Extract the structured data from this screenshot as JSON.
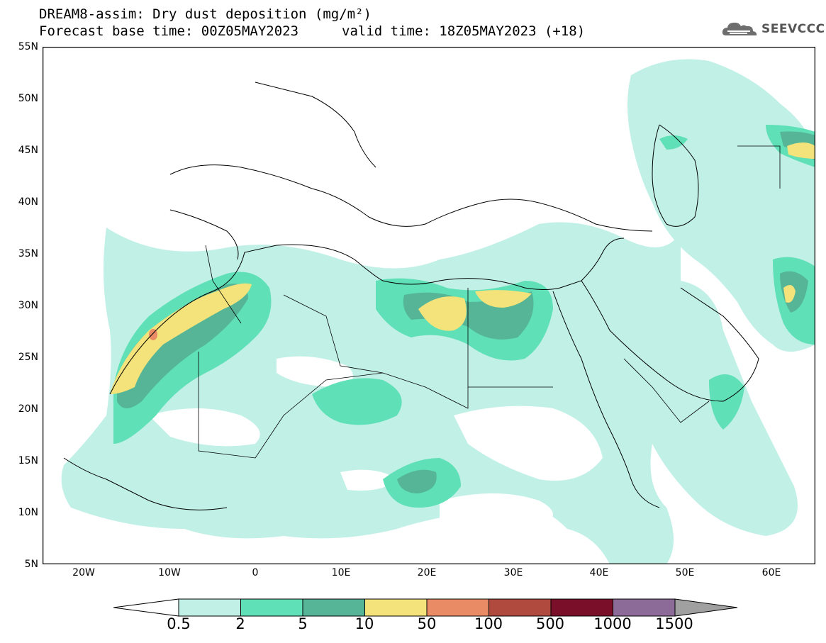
{
  "header": {
    "title_line1": "DREAM8-assim: Dry dust deposition (mg/m²)",
    "title_line2": "Forecast base time: 00Z05MAY2023",
    "title_line2b": "valid time: 18Z05MAY2023 (+18)",
    "logo_text": "SEEVCCC"
  },
  "map": {
    "lon_range": [
      -25,
      65
    ],
    "lat_range": [
      5,
      55
    ],
    "lat_labels": [
      "55N",
      "50N",
      "45N",
      "40N",
      "35N",
      "30N",
      "25N",
      "20N",
      "15N",
      "10N",
      "5N"
    ],
    "lon_labels": [
      "20W",
      "10W",
      "0",
      "10E",
      "20E",
      "30E",
      "40E",
      "50E",
      "60E"
    ]
  },
  "colorbar": {
    "labels": [
      "0.5",
      "2",
      "5",
      "10",
      "50",
      "100",
      "500",
      "1000",
      "1500"
    ],
    "colors": [
      "#c0f0e6",
      "#5fe0b6",
      "#55b596",
      "#f3e37a",
      "#e98c66",
      "#b04a3f",
      "#7a0f2a",
      "#8c6b99",
      "#a0a0a0"
    ]
  }
}
